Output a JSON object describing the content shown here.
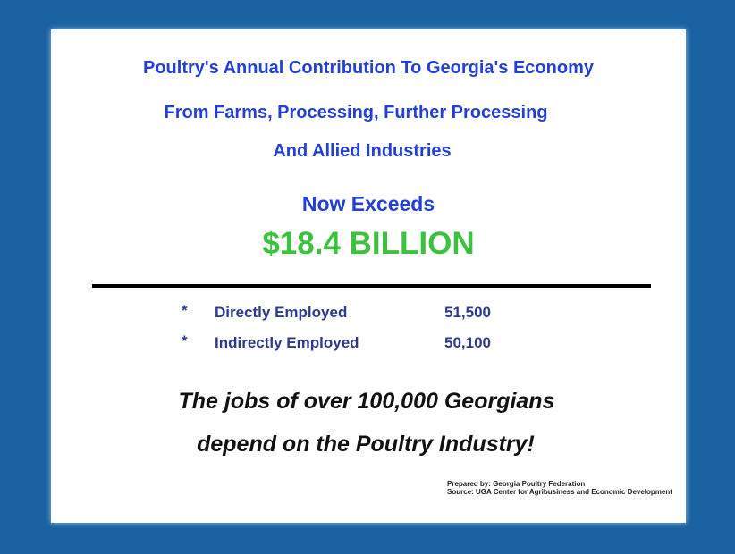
{
  "title_lines": [
    "Poultry's Annual Contribution To Georgia's Economy",
    "From Farms, Processing, Further Processing",
    "And Allied Industries"
  ],
  "subtitle": "Now Exceeds",
  "amount": "$18.4 BILLION",
  "stats": [
    {
      "bullet": "*",
      "label": "Directly Employed",
      "value": "51,500"
    },
    {
      "bullet": "*",
      "label": "Indirectly Employed",
      "value": "50,100"
    }
  ],
  "tagline": [
    "The jobs of over 100,000 Georgians",
    "depend on the Poultry Industry!"
  ],
  "credits": [
    "Prepared by: Georgia Poultry Federation",
    "Source: UGA Center for Agribusiness and Economic Development"
  ]
}
